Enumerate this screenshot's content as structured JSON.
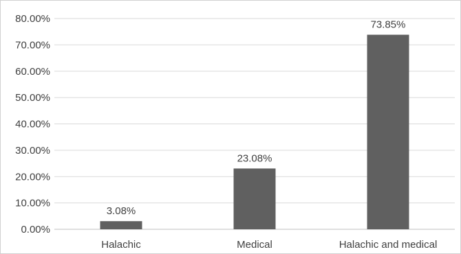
{
  "chart_data": {
    "type": "bar",
    "title": "",
    "xlabel": "",
    "ylabel": "",
    "categories": [
      "Halachic",
      "Medical",
      "Halachic and medical"
    ],
    "values": [
      3.08,
      23.08,
      73.85
    ],
    "value_labels": [
      "3.08%",
      "23.08%",
      "73.85%"
    ],
    "ylim": [
      0,
      80
    ],
    "y_ticks": [
      0,
      10,
      20,
      30,
      40,
      50,
      60,
      70,
      80
    ],
    "y_tick_labels": [
      "0.00%",
      "10.00%",
      "20.00%",
      "30.00%",
      "40.00%",
      "50.00%",
      "60.00%",
      "70.00%",
      "80.00%"
    ],
    "grid": true,
    "legend": "none",
    "bar_color": "#606060"
  }
}
